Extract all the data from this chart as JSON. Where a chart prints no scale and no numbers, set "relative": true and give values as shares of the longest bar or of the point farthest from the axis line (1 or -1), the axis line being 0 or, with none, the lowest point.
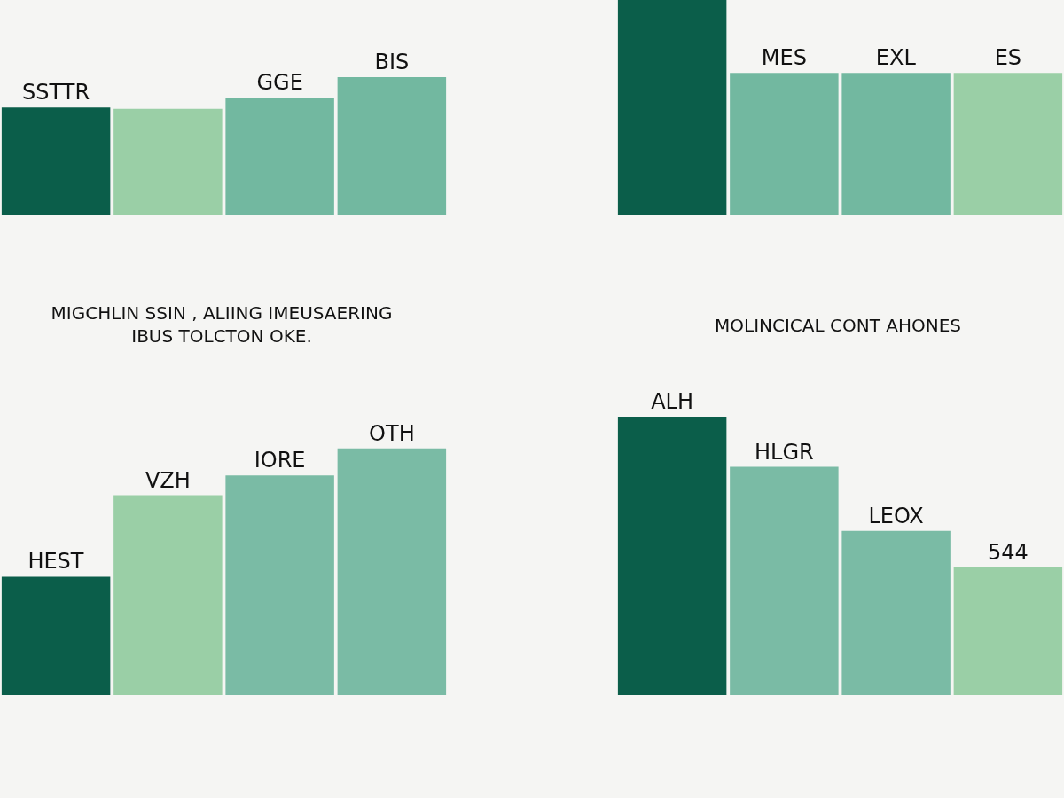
{
  "chart_data": [
    {
      "type": "bar",
      "relative": true,
      "categories": [
        "SSTTR",
        null,
        "GGE",
        "BIS"
      ],
      "values": [
        0.78,
        0.77,
        0.85,
        1
      ],
      "colors": [
        "#0b5e4a",
        "#9acfa6",
        "#72b8a0",
        "#72b8a0"
      ],
      "grid": false,
      "legend": false
    },
    {
      "type": "bar",
      "relative": true,
      "categories": [
        null,
        "MES",
        "EXL",
        "ES"
      ],
      "values": [
        1,
        0.66,
        0.66,
        0.66
      ],
      "colors": [
        "#0b5e4a",
        "#72b8a0",
        "#72b8a0",
        "#9acfa6"
      ],
      "grid": false,
      "legend": false
    },
    {
      "type": "bar",
      "relative": true,
      "title": "MIGCHLIN SSIN , ALIING IMEUSAERING\nIBUS TOLCTON OKE.",
      "categories": [
        "HEST",
        "VZH",
        "IORE",
        "OTH"
      ],
      "values": [
        0.48,
        0.81,
        0.89,
        1
      ],
      "colors": [
        "#0b5e4a",
        "#9acfa6",
        "#7abba5",
        "#7abba5"
      ],
      "grid": false,
      "legend": false
    },
    {
      "type": "bar",
      "relative": true,
      "title": "MOLINCICAL CONT AHONES",
      "categories": [
        "ALH",
        "HLGR",
        "LEOX",
        "544"
      ],
      "values": [
        1,
        0.82,
        0.59,
        0.46
      ],
      "colors": [
        "#0b5e4a",
        "#7abba5",
        "#7abba5",
        "#9acfa6"
      ],
      "grid": false,
      "legend": false
    }
  ]
}
